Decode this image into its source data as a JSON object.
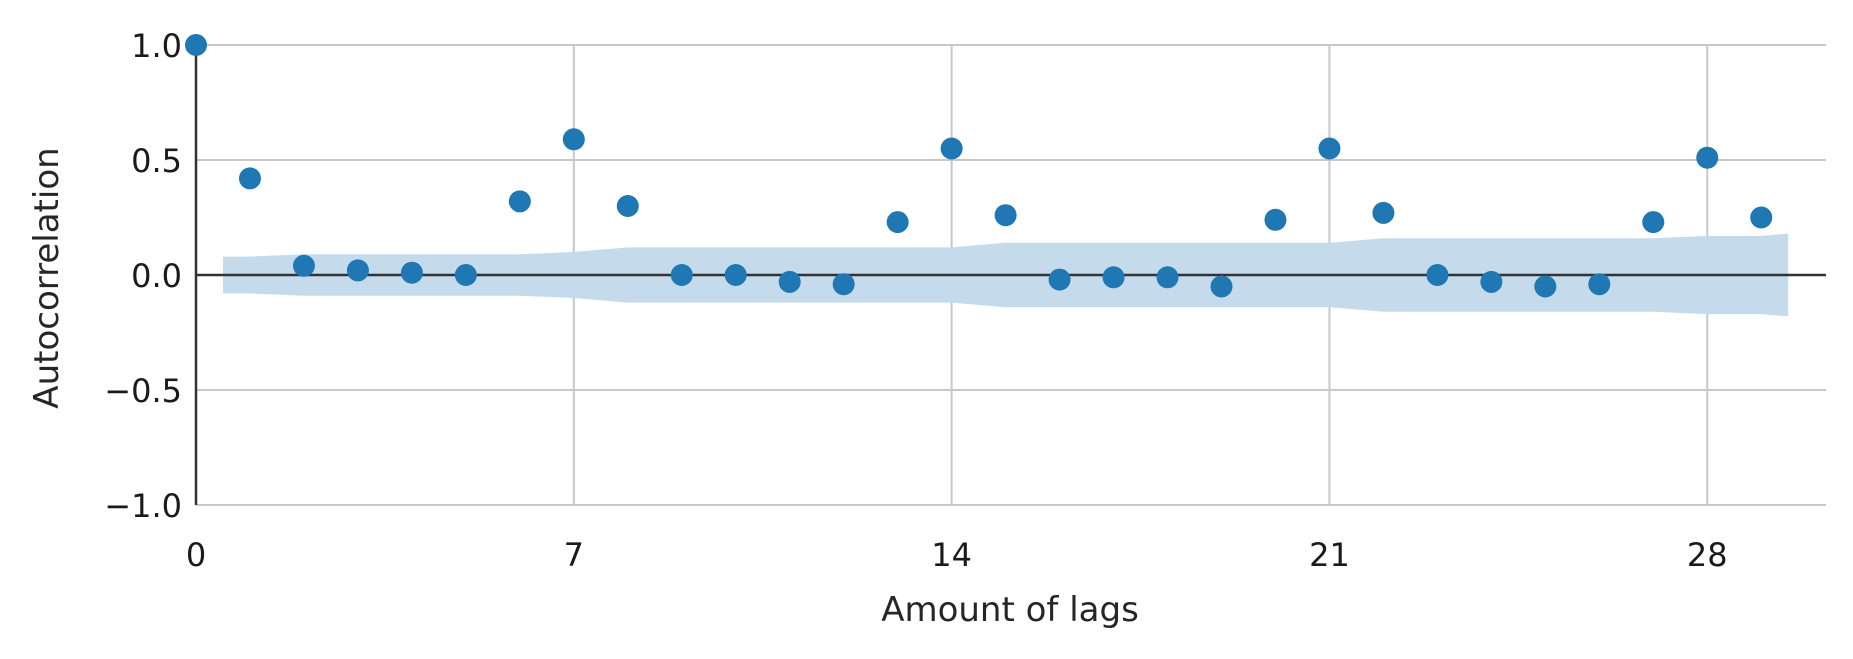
{
  "chart_data": {
    "type": "scatter",
    "title": "",
    "xlabel": "Amount of lags",
    "ylabel": "Autocorrelation",
    "xlim": [
      0,
      30.2
    ],
    "ylim": [
      -1.0,
      1.0
    ],
    "x_ticks": [
      0,
      7,
      14,
      21,
      28
    ],
    "x_tick_labels": [
      "0",
      "7",
      "14",
      "21",
      "28"
    ],
    "y_ticks": [
      -1.0,
      -0.5,
      0.0,
      0.5,
      1.0
    ],
    "y_tick_labels": [
      "−1.0",
      "−0.5",
      "0.0",
      "0.5",
      "1.0"
    ],
    "grid": true,
    "x": [
      0,
      1,
      2,
      3,
      4,
      5,
      6,
      7,
      8,
      9,
      10,
      11,
      12,
      13,
      14,
      15,
      16,
      17,
      18,
      19,
      20,
      21,
      22,
      23,
      24,
      25,
      26,
      27,
      28,
      29
    ],
    "values": [
      1.0,
      0.42,
      0.04,
      0.02,
      0.01,
      0.0,
      0.32,
      0.59,
      0.3,
      0.0,
      0.0,
      -0.03,
      -0.04,
      0.23,
      0.55,
      0.26,
      -0.02,
      -0.01,
      -0.01,
      -0.05,
      0.24,
      0.55,
      0.27,
      0.0,
      -0.03,
      -0.05,
      -0.04,
      0.23,
      0.51,
      0.25
    ],
    "confidence_band": {
      "x": [
        0.5,
        1,
        2,
        3,
        4,
        5,
        6,
        7,
        8,
        9,
        10,
        11,
        12,
        13,
        14,
        15,
        16,
        17,
        18,
        19,
        20,
        21,
        22,
        23,
        24,
        25,
        26,
        27,
        28,
        29,
        29.5
      ],
      "upper": [
        0.08,
        0.08,
        0.09,
        0.09,
        0.09,
        0.09,
        0.09,
        0.1,
        0.12,
        0.12,
        0.12,
        0.12,
        0.12,
        0.12,
        0.12,
        0.14,
        0.14,
        0.14,
        0.14,
        0.14,
        0.14,
        0.14,
        0.16,
        0.16,
        0.16,
        0.16,
        0.16,
        0.16,
        0.17,
        0.17,
        0.18
      ],
      "lower": [
        -0.08,
        -0.08,
        -0.09,
        -0.09,
        -0.09,
        -0.09,
        -0.09,
        -0.1,
        -0.12,
        -0.12,
        -0.12,
        -0.12,
        -0.12,
        -0.12,
        -0.12,
        -0.14,
        -0.14,
        -0.14,
        -0.14,
        -0.14,
        -0.14,
        -0.14,
        -0.16,
        -0.16,
        -0.16,
        -0.16,
        -0.16,
        -0.16,
        -0.17,
        -0.17,
        -0.18
      ]
    },
    "colors": {
      "points": "#1f77b4",
      "band": "#c5dbec",
      "grid": "#c8c8c8",
      "axis": "#333333",
      "zero_line": "#333333"
    }
  }
}
